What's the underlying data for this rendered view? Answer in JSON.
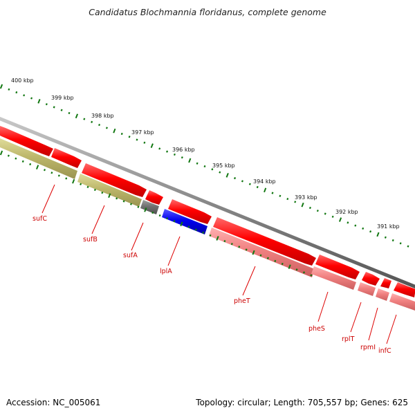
{
  "title": "Candidatus Blochmannia floridanus, complete genome",
  "footer": {
    "accession": "Accession: NC_005061",
    "topology": "Topology: circular; Length: 705,557 bp; Genes: 625"
  },
  "colors": {
    "backbone": "#909090",
    "cds_forward": "#ff0000",
    "cds_reverse": "#f08080",
    "feature_olive": "#bdb76b",
    "feature_gray": "#707070",
    "feature_blue": "#0000ee",
    "tick": "#117711",
    "gene_label": "#cc0000"
  },
  "scale_labels": [
    "400 kbp",
    "399 kbp",
    "398 kbp",
    "397 kbp",
    "396 kbp",
    "395 kbp",
    "394 kbp",
    "393 kbp",
    "392 kbp",
    "391 kbp"
  ],
  "genes": [
    {
      "name": "sufC"
    },
    {
      "name": "sufB"
    },
    {
      "name": "sufA"
    },
    {
      "name": "lplA"
    },
    {
      "name": "pheT"
    },
    {
      "name": "pheS"
    },
    {
      "name": "rplT"
    },
    {
      "name": "rpmI"
    },
    {
      "name": "infC"
    }
  ]
}
